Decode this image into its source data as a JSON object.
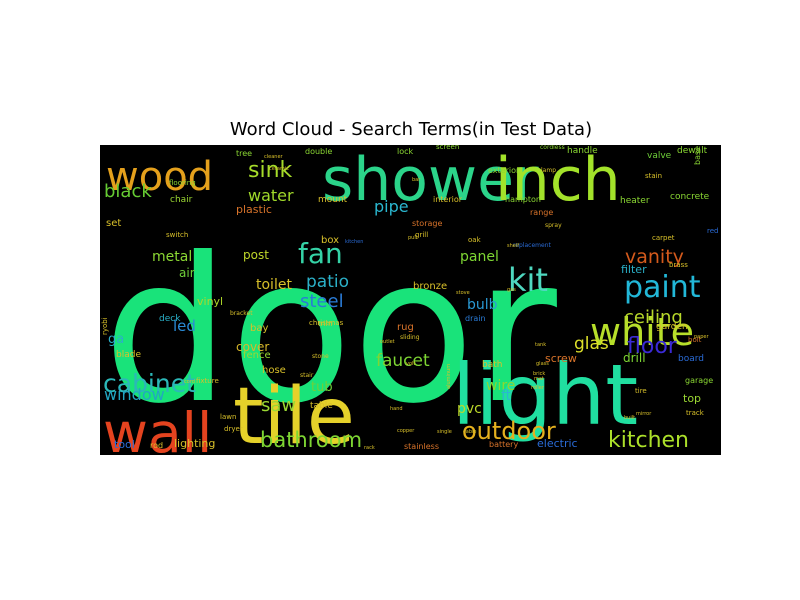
{
  "chart_data": {
    "type": "wordcloud",
    "title": "Word Cloud - Search Terms(in Test Data)",
    "background": "#000000",
    "words": [
      {
        "text": "door",
        "weight": 100,
        "color": "#19e37a"
      },
      {
        "text": "light",
        "weight": 48,
        "color": "#20dfa0"
      },
      {
        "text": "tile",
        "weight": 44,
        "color": "#e5d12a"
      },
      {
        "text": "shower",
        "weight": 36,
        "color": "#2bd48a"
      },
      {
        "text": "inch",
        "weight": 36,
        "color": "#a3e22a"
      },
      {
        "text": "wall",
        "weight": 34,
        "color": "#e4431f"
      },
      {
        "text": "wood",
        "weight": 30,
        "color": "#e4a01c"
      },
      {
        "text": "white",
        "weight": 25,
        "color": "#b7df2a"
      },
      {
        "text": "paint",
        "weight": 21,
        "color": "#22b8d8"
      },
      {
        "text": "kit",
        "weight": 21,
        "color": "#4fd8c0"
      },
      {
        "text": "cabinet",
        "weight": 20,
        "color": "#2bb8b8"
      },
      {
        "text": "fan",
        "weight": 19,
        "color": "#35d2a6"
      },
      {
        "text": "outdoor",
        "weight": 18,
        "color": "#e5b01e"
      },
      {
        "text": "kitchen",
        "weight": 17,
        "color": "#ace02a"
      },
      {
        "text": "bathroom",
        "weight": 16,
        "color": "#7ed633"
      },
      {
        "text": "sink",
        "weight": 15,
        "color": "#a6dc2a"
      },
      {
        "text": "floor",
        "weight": 15,
        "color": "#3b2ad6"
      },
      {
        "text": "vanity",
        "weight": 15,
        "color": "#d45a1c"
      },
      {
        "text": "ceiling",
        "weight": 14,
        "color": "#b8d82a"
      },
      {
        "text": "black",
        "weight": 13,
        "color": "#66cc33"
      },
      {
        "text": "water",
        "weight": 13,
        "color": "#a0d82a"
      },
      {
        "text": "window",
        "weight": 13,
        "color": "#22a6c2"
      },
      {
        "text": "steel",
        "weight": 13,
        "color": "#2a7bd6"
      },
      {
        "text": "patio",
        "weight": 13,
        "color": "#2bb0c8"
      },
      {
        "text": "faucet",
        "weight": 12,
        "color": "#7ed633"
      },
      {
        "text": "glas",
        "weight": 12,
        "color": "#dde02a"
      },
      {
        "text": "pipe",
        "weight": 12,
        "color": "#2ab7d0"
      },
      {
        "text": "led",
        "weight": 11,
        "color": "#2a8bd6"
      },
      {
        "text": "saw",
        "weight": 11,
        "color": "#9bd833"
      },
      {
        "text": "toilet",
        "weight": 10,
        "color": "#d8c02a"
      },
      {
        "text": "metal",
        "weight": 10,
        "color": "#8bd833"
      },
      {
        "text": "panel",
        "weight": 10,
        "color": "#7ed633"
      },
      {
        "text": "bulb",
        "weight": 10,
        "color": "#2a9bd6"
      },
      {
        "text": "wire",
        "weight": 9,
        "color": "#8bd833"
      },
      {
        "text": "pvc",
        "weight": 9,
        "color": "#bcd82a"
      },
      {
        "text": "tub",
        "weight": 9,
        "color": "#6fd03a"
      },
      {
        "text": "ga",
        "weight": 9,
        "color": "#2bb0c8"
      },
      {
        "text": "air",
        "weight": 8,
        "color": "#6fd03a"
      },
      {
        "text": "post",
        "weight": 8,
        "color": "#c0d82a"
      },
      {
        "text": "cover",
        "weight": 8,
        "color": "#d8b82a"
      },
      {
        "text": "vinyl",
        "weight": 7,
        "color": "#aed82a"
      },
      {
        "text": "lighting",
        "weight": 7,
        "color": "#d8c02a"
      },
      {
        "text": "ft",
        "weight": 8,
        "color": "#2ab7d0"
      },
      {
        "text": "screw",
        "weight": 7,
        "color": "#d8732a"
      },
      {
        "text": "drill",
        "weight": 7,
        "color": "#7ed633"
      },
      {
        "text": "filter",
        "weight": 7,
        "color": "#2ab0c8"
      },
      {
        "text": "top",
        "weight": 7,
        "color": "#9bd833"
      },
      {
        "text": "tool",
        "weight": 7,
        "color": "#2a6bd6"
      },
      {
        "text": "plastic",
        "weight": 7,
        "color": "#d8732a"
      },
      {
        "text": "electric",
        "weight": 7,
        "color": "#2a6bd6"
      },
      {
        "text": "fence",
        "weight": 6,
        "color": "#9bd833"
      },
      {
        "text": "hose",
        "weight": 6,
        "color": "#d8c02a"
      },
      {
        "text": "bay",
        "weight": 6,
        "color": "#d8c02a"
      },
      {
        "text": "set",
        "weight": 6,
        "color": "#d8c02a"
      },
      {
        "text": "box",
        "weight": 6,
        "color": "#d8c02a"
      },
      {
        "text": "bronze",
        "weight": 6,
        "color": "#d8c02a"
      },
      {
        "text": "rug",
        "weight": 6,
        "color": "#d8732a"
      },
      {
        "text": "bath",
        "weight": 5,
        "color": "#d8c02a"
      },
      {
        "text": "drain",
        "weight": 5,
        "color": "#2a7bd6"
      },
      {
        "text": "heater",
        "weight": 5,
        "color": "#8bd833"
      },
      {
        "text": "concrete",
        "weight": 5,
        "color": "#8bd833"
      },
      {
        "text": "chair",
        "weight": 5,
        "color": "#9bd833"
      },
      {
        "text": "mount",
        "weight": 5,
        "color": "#d8c02a"
      },
      {
        "text": "interior",
        "weight": 5,
        "color": "#d8c02a"
      },
      {
        "text": "hampton",
        "weight": 5,
        "color": "#8bd833"
      },
      {
        "text": "storage",
        "weight": 5,
        "color": "#d8732a"
      },
      {
        "text": "range",
        "weight": 5,
        "color": "#d8732a"
      },
      {
        "text": "garden",
        "weight": 5,
        "color": "#d8c02a"
      },
      {
        "text": "oak",
        "weight": 4,
        "color": "#d8c02a"
      },
      {
        "text": "grill",
        "weight": 4,
        "color": "#d8c02a"
      },
      {
        "text": "trim",
        "weight": 4,
        "color": "#d8c02a"
      },
      {
        "text": "deck",
        "weight": 5,
        "color": "#2ab0c8"
      },
      {
        "text": "blade",
        "weight": 5,
        "color": "#d8c02a"
      },
      {
        "text": "table",
        "weight": 5,
        "color": "#d8c02a"
      },
      {
        "text": "rod",
        "weight": 5,
        "color": "#d8c02a"
      },
      {
        "text": "stainless",
        "weight": 5,
        "color": "#d8732a"
      },
      {
        "text": "battery",
        "weight": 5,
        "color": "#d8732a"
      },
      {
        "text": "valve",
        "weight": 5,
        "color": "#6fd03a"
      },
      {
        "text": "handle",
        "weight": 5,
        "color": "#8bd833"
      },
      {
        "text": "exterior",
        "weight": 5,
        "color": "#8bd833"
      },
      {
        "text": "lock",
        "weight": 5,
        "color": "#8bd833"
      },
      {
        "text": "double",
        "weight": 5,
        "color": "#8bd833"
      },
      {
        "text": "dewalt",
        "weight": 5,
        "color": "#8bd833"
      },
      {
        "text": "board",
        "weight": 5,
        "color": "#2a6bd6"
      },
      {
        "text": "garage",
        "weight": 4,
        "color": "#8bd833"
      },
      {
        "text": "bolt",
        "weight": 4,
        "color": "#d8732a"
      },
      {
        "text": "tree",
        "weight": 4,
        "color": "#8bd833"
      },
      {
        "text": "flooring",
        "weight": 4,
        "color": "#8bd833"
      },
      {
        "text": "screen",
        "weight": 4,
        "color": "#8bd833"
      },
      {
        "text": "cordless",
        "weight": 3,
        "color": "#8bd833"
      },
      {
        "text": "base",
        "weight": 4,
        "color": "#8bd833"
      },
      {
        "text": "red",
        "weight": 4,
        "color": "#2a6bd6"
      },
      {
        "text": "carpet",
        "weight": 4,
        "color": "#d8c02a"
      },
      {
        "text": "stain",
        "weight": 4,
        "color": "#d8c02a"
      },
      {
        "text": "lawn",
        "weight": 4,
        "color": "#d8c02a"
      },
      {
        "text": "dryer",
        "weight": 4,
        "color": "#d8c02a"
      },
      {
        "text": "fixture",
        "weight": 4,
        "color": "#d8c02a"
      },
      {
        "text": "christmas",
        "weight": 4,
        "color": "#d8c02a"
      },
      {
        "text": "stair",
        "weight": 4,
        "color": "#d8c02a"
      },
      {
        "text": "stone",
        "weight": 4,
        "color": "#d8c02a"
      },
      {
        "text": "switch",
        "weight": 4,
        "color": "#d8c02a"
      },
      {
        "text": "bracket",
        "weight": 4,
        "color": "#d8c02a"
      },
      {
        "text": "sliding",
        "weight": 4,
        "color": "#d8c02a"
      },
      {
        "text": "ryobi",
        "weight": 4,
        "color": "#d8c02a"
      },
      {
        "text": "replacement",
        "weight": 4,
        "color": "#2a6bd6"
      },
      {
        "text": "track",
        "weight": 4,
        "color": "#d8c02a"
      },
      {
        "text": "tire",
        "weight": 4,
        "color": "#d8c02a"
      },
      {
        "text": "spray",
        "weight": 4,
        "color": "#d8c02a"
      },
      {
        "text": "brass",
        "weight": 4,
        "color": "#d8c02a"
      },
      {
        "text": "lamp",
        "weight": 4,
        "color": "#d8c02a"
      },
      {
        "text": "shelf",
        "weight": 4,
        "color": "#d8c02a"
      },
      {
        "text": "kitchen",
        "weight": 4,
        "color": "#2a6bd6"
      },
      {
        "text": "cable",
        "weight": 3,
        "color": "#d8c02a"
      },
      {
        "text": "single",
        "weight": 3,
        "color": "#d8c02a"
      },
      {
        "text": "copper",
        "weight": 3,
        "color": "#d8c02a"
      },
      {
        "text": "hand",
        "weight": 3,
        "color": "#d8c02a"
      },
      {
        "text": "aluminum",
        "weight": 3,
        "color": "#d8c02a"
      },
      {
        "text": "mirror",
        "weight": 3,
        "color": "#d8c02a"
      },
      {
        "text": "rack",
        "weight": 3,
        "color": "#d8c02a"
      },
      {
        "text": "bar",
        "weight": 3,
        "color": "#d8c02a"
      },
      {
        "text": "cord",
        "weight": 3,
        "color": "#d8c02a"
      },
      {
        "text": "pull",
        "weight": 3,
        "color": "#d8c02a"
      },
      {
        "text": "outlet",
        "weight": 3,
        "color": "#d8c02a"
      },
      {
        "text": "volt",
        "weight": 3,
        "color": "#d8c02a"
      },
      {
        "text": "cleaner",
        "weight": 3,
        "color": "#d8c02a"
      },
      {
        "text": "ceramic",
        "weight": 3,
        "color": "#d8c02a"
      },
      {
        "text": "stove",
        "weight": 3,
        "color": "#d8c02a"
      },
      {
        "text": "gas",
        "weight": 3,
        "color": "#d8c02a"
      },
      {
        "text": "built",
        "weight": 3,
        "color": "#d8c02a"
      },
      {
        "text": "paper",
        "weight": 3,
        "color": "#d8c02a"
      },
      {
        "text": "tank",
        "weight": 3,
        "color": "#d8c02a"
      },
      {
        "text": "roller",
        "weight": 3,
        "color": "#d8c02a"
      },
      {
        "text": "mat",
        "weight": 3,
        "color": "#d8c02a"
      },
      {
        "text": "brick",
        "weight": 3,
        "color": "#d8c02a"
      },
      {
        "text": "glass",
        "weight": 3,
        "color": "#d8c02a"
      },
      {
        "text": "step",
        "weight": 3,
        "color": "#d8c02a"
      },
      {
        "text": "rain",
        "weight": 3,
        "color": "#d8c02a"
      },
      {
        "text": "hook",
        "weight": 3,
        "color": "#d8c02a"
      }
    ]
  }
}
